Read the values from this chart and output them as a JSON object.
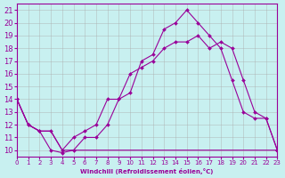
{
  "xlabel": "Windchill (Refroidissement éolien,°C)",
  "background_color": "#c8f0f0",
  "line_color": "#990099",
  "grid_color": "#aaaaaa",
  "xlim": [
    0,
    23
  ],
  "ylim": [
    9.5,
    21.5
  ],
  "yticks": [
    10,
    11,
    12,
    13,
    14,
    15,
    16,
    17,
    18,
    19,
    20,
    21
  ],
  "xticks": [
    0,
    1,
    2,
    3,
    4,
    5,
    6,
    7,
    8,
    9,
    10,
    11,
    12,
    13,
    14,
    15,
    16,
    17,
    18,
    19,
    20,
    21,
    22,
    23
  ],
  "line1_x": [
    0,
    1,
    2,
    3,
    4,
    5,
    6,
    7,
    8,
    9,
    10,
    11,
    12,
    13,
    14,
    15,
    16,
    17,
    18,
    19,
    20,
    21,
    22,
    23
  ],
  "line1_y": [
    14,
    12,
    11.5,
    10,
    9.8,
    10,
    11,
    11,
    12,
    14,
    14.5,
    17,
    17.5,
    19.5,
    20,
    21,
    20,
    19,
    18,
    15.5,
    13,
    12.5,
    12.5,
    10
  ],
  "line2_x": [
    0,
    1,
    2,
    3,
    4,
    5,
    6,
    7,
    8,
    9,
    10,
    11,
    12,
    13,
    14,
    15,
    16,
    17,
    18,
    19,
    20,
    21,
    22,
    23
  ],
  "line2_y": [
    14,
    12,
    11.5,
    11.5,
    10,
    10,
    10,
    10,
    10,
    10,
    10,
    10,
    10,
    10,
    10,
    10,
    10,
    10,
    10,
    10,
    10,
    10,
    10,
    10
  ],
  "line3_x": [
    0,
    1,
    2,
    3,
    4,
    5,
    6,
    7,
    8,
    9,
    10,
    11,
    12,
    13,
    14,
    15,
    16,
    17,
    18,
    19,
    20,
    21,
    22,
    23
  ],
  "line3_y": [
    14,
    12,
    11.5,
    11.5,
    10,
    11,
    11.5,
    12,
    14,
    14,
    16,
    16.5,
    17,
    18,
    18.5,
    18.5,
    19,
    18,
    18.5,
    18,
    15.5,
    13,
    12.5,
    10
  ]
}
